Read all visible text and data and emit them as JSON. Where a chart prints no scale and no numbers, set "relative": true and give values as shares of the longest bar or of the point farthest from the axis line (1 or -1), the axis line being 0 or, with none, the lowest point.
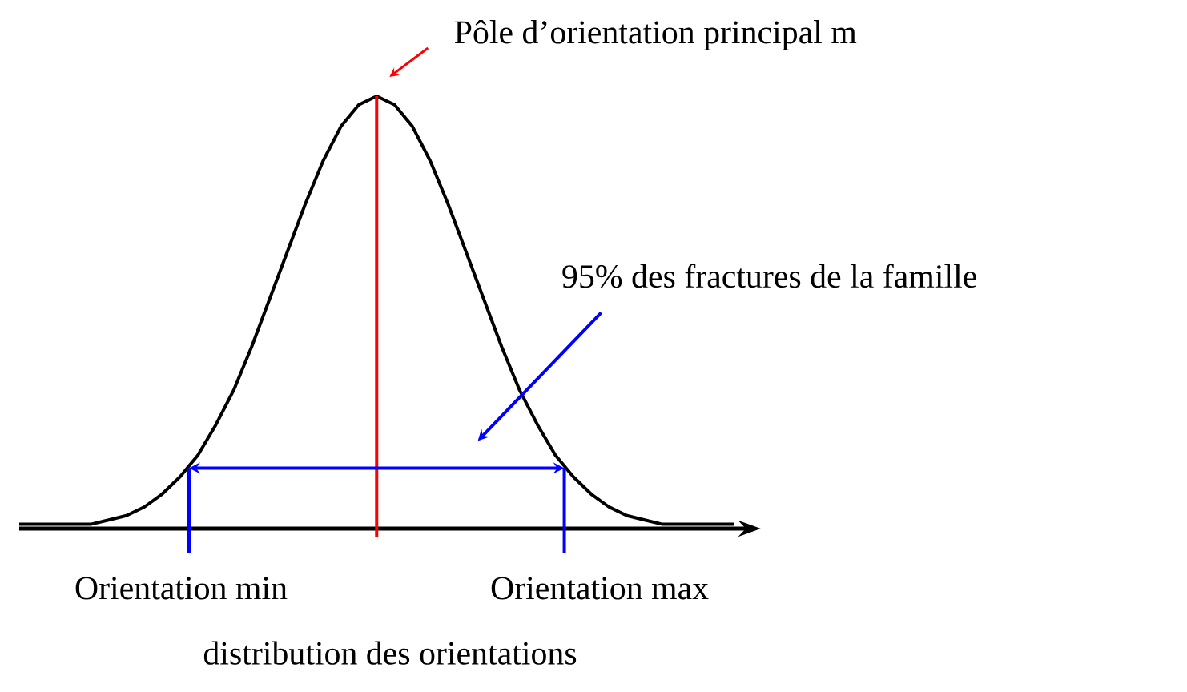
{
  "chart_data": {
    "type": "line",
    "relative": true,
    "xlabel": "distribution des orientations",
    "categories": [
      null,
      null,
      null,
      null,
      null,
      null,
      null,
      null,
      null,
      null,
      null,
      null,
      null,
      null,
      null,
      null,
      null,
      null,
      null,
      null,
      null,
      null,
      null,
      null,
      null,
      null,
      null,
      null,
      null,
      null,
      null,
      null,
      null,
      null,
      null,
      null,
      null,
      null,
      null,
      null,
      null
    ],
    "series": [
      {
        "color": "#000000",
        "values": [
          0.01,
          0.01,
          0.01,
          0.01,
          0.01,
          0.02,
          0.03,
          0.05,
          0.08,
          0.12,
          0.17,
          0.24,
          0.32,
          0.42,
          0.53,
          0.64,
          0.75,
          0.85,
          0.93,
          0.98,
          1,
          0.98,
          0.93,
          0.85,
          0.75,
          0.64,
          0.53,
          0.42,
          0.32,
          0.24,
          0.17,
          0.12,
          0.08,
          0.05,
          0.03,
          0.02,
          0.01,
          0.01,
          0.01,
          0.01,
          0.01
        ]
      }
    ],
    "annotations": [
      "Pôle d’orientation principal m",
      "95% des fractures de la famille",
      "Orientation min",
      "Orientation max"
    ]
  }
}
